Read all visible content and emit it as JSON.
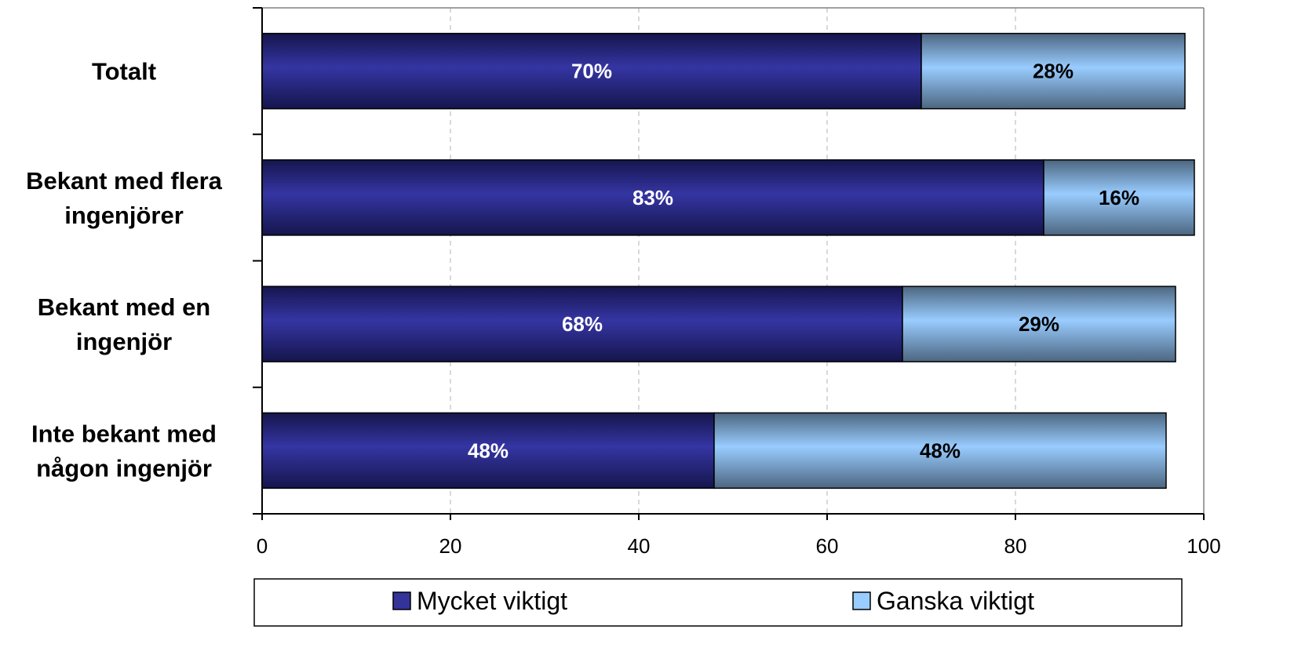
{
  "chart_data": {
    "type": "bar",
    "orientation": "horizontal",
    "stacked": true,
    "categories": [
      "Totalt",
      "Bekant med flera ingenjörer",
      "Bekant med en ingenjör",
      "Inte bekant med någon ingenjör"
    ],
    "category_lines": [
      [
        "Totalt"
      ],
      [
        "Bekant med flera",
        "ingenjörer"
      ],
      [
        "Bekant med en",
        "ingenjör"
      ],
      [
        "Inte bekant med",
        "någon ingenjör"
      ]
    ],
    "series": [
      {
        "name": "Mycket viktigt",
        "values": [
          70,
          83,
          68,
          48
        ],
        "labels": [
          "70%",
          "83%",
          "68%",
          "48%"
        ],
        "color": "#33339a",
        "label_color": "#ffffff"
      },
      {
        "name": "Ganska viktigt",
        "values": [
          28,
          16,
          29,
          48
        ],
        "labels": [
          "28%",
          "16%",
          "29%",
          "48%"
        ],
        "color": "#99ccff",
        "label_color": "#000000"
      }
    ],
    "xlim": [
      0,
      100
    ],
    "xticks": [
      0,
      20,
      40,
      60,
      80,
      100
    ],
    "grid": "vertical dashed",
    "legend_position": "bottom",
    "title": "",
    "xlabel": "",
    "ylabel": ""
  }
}
